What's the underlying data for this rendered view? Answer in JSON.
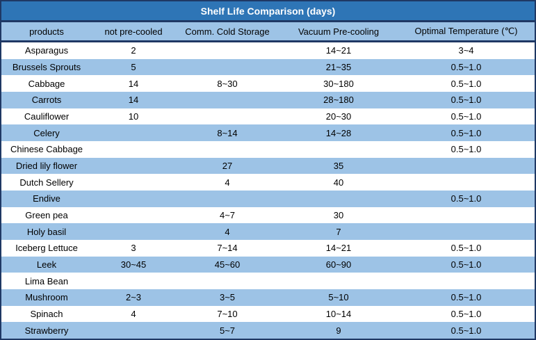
{
  "title": "Shelf Life Comparison (days)",
  "colors": {
    "title_bg": "#2E75B6",
    "title_text": "#FFFFFF",
    "band_blue": "#9DC3E6",
    "band_white": "#FFFFFF",
    "border_navy": "#1F3864",
    "body_text": "#000000"
  },
  "chart_data": {
    "type": "table",
    "title": "Shelf Life Comparison (days)",
    "columns": [
      "products",
      "not pre-cooled",
      "Comm. Cold Storage",
      "Vacuum Pre-cooling",
      "Optimal Temperature (℃)"
    ],
    "rows": [
      [
        "Asparagus",
        "2",
        "",
        "14~21",
        "3~4"
      ],
      [
        "Brussels Sprouts",
        "5",
        "",
        "21~35",
        "0.5~1.0"
      ],
      [
        "Cabbage",
        "14",
        "8~30",
        "30~180",
        "0.5~1.0"
      ],
      [
        "Carrots",
        "14",
        "",
        "28~180",
        "0.5~1.0"
      ],
      [
        "Cauliflower",
        "10",
        "",
        "20~30",
        "0.5~1.0"
      ],
      [
        "Celery",
        "",
        "8~14",
        "14~28",
        "0.5~1.0"
      ],
      [
        "Chinese Cabbage",
        "",
        "",
        "",
        "0.5~1.0"
      ],
      [
        "Dried lily flower",
        "",
        "27",
        "35",
        ""
      ],
      [
        "Dutch Sellery",
        "",
        "4",
        "40",
        ""
      ],
      [
        "Endive",
        "",
        "",
        "",
        "0.5~1.0"
      ],
      [
        "Green pea",
        "",
        "4~7",
        "30",
        ""
      ],
      [
        "Holy basil",
        "",
        "4",
        "7",
        ""
      ],
      [
        "Iceberg Lettuce",
        "3",
        "7~14",
        "14~21",
        "0.5~1.0"
      ],
      [
        "Leek",
        "30~45",
        "45~60",
        "60~90",
        "0.5~1.0"
      ],
      [
        "Lima Bean",
        "",
        "",
        "",
        ""
      ],
      [
        "Mushroom",
        "2~3",
        "3~5",
        "5~10",
        "0.5~1.0"
      ],
      [
        "Spinach",
        "4",
        "7~10",
        "10~14",
        "0.5~1.0"
      ],
      [
        "Strawberry",
        "",
        "5~7",
        "9",
        "0.5~1.0"
      ]
    ]
  }
}
